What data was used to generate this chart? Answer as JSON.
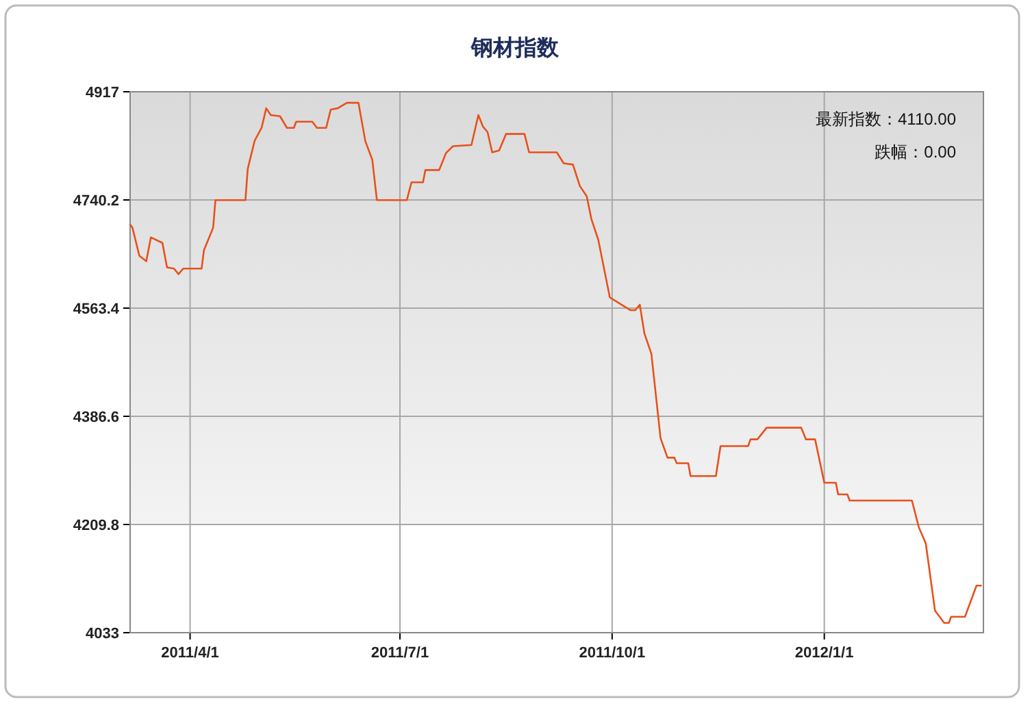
{
  "chart_data": {
    "type": "line",
    "title": "钢材指数",
    "annotations": [
      "最新指数：4110.00",
      "跌幅：0.00"
    ],
    "x": [
      "2011-03-06",
      "2011-03-07",
      "2011-03-10",
      "2011-03-13",
      "2011-03-15",
      "2011-03-20",
      "2011-03-22",
      "2011-03-25",
      "2011-03-27",
      "2011-03-29",
      "2011-04-06",
      "2011-04-07",
      "2011-04-11",
      "2011-04-12",
      "2011-04-25",
      "2011-04-26",
      "2011-04-29",
      "2011-05-02",
      "2011-05-04",
      "2011-05-06",
      "2011-05-10",
      "2011-05-13",
      "2011-05-16",
      "2011-05-17",
      "2011-05-24",
      "2011-05-26",
      "2011-05-30",
      "2011-06-01",
      "2011-06-04",
      "2011-06-08",
      "2011-06-13",
      "2011-06-16",
      "2011-06-19",
      "2011-06-21",
      "2011-07-04",
      "2011-07-06",
      "2011-07-11",
      "2011-07-12",
      "2011-07-18",
      "2011-07-21",
      "2011-07-24",
      "2011-08-01",
      "2011-08-04",
      "2011-08-06",
      "2011-08-08",
      "2011-08-10",
      "2011-08-13",
      "2011-08-16",
      "2011-08-24",
      "2011-08-26",
      "2011-09-07",
      "2011-09-10",
      "2011-09-14",
      "2011-09-17",
      "2011-09-20",
      "2011-09-22",
      "2011-09-25",
      "2011-09-30",
      "2011-10-09",
      "2011-10-11",
      "2011-10-13",
      "2011-10-15",
      "2011-10-18",
      "2011-10-22",
      "2011-10-25",
      "2011-10-28",
      "2011-10-29",
      "2011-11-03",
      "2011-11-04",
      "2011-11-15",
      "2011-11-17",
      "2011-11-29",
      "2011-11-30",
      "2011-12-03",
      "2011-12-07",
      "2011-12-22",
      "2011-12-24",
      "2011-12-28",
      "2012-01-01",
      "2012-01-06",
      "2012-01-07",
      "2012-01-11",
      "2012-01-12",
      "2012-02-08",
      "2012-02-11",
      "2012-02-14",
      "2012-02-18",
      "2012-02-22",
      "2012-02-24",
      "2012-02-25",
      "2012-03-02",
      "2012-03-07",
      "2012-03-09"
    ],
    "series": [
      {
        "color": "#e8501c",
        "values": [
          4700,
          4695,
          4649,
          4640,
          4679,
          4670,
          4630,
          4628,
          4619,
          4628,
          4628,
          4658,
          4695,
          4740,
          4740,
          4791,
          4837,
          4858,
          4890,
          4879,
          4877,
          4858,
          4858,
          4868,
          4868,
          4858,
          4858,
          4888,
          4890,
          4899,
          4899,
          4836,
          4806,
          4740,
          4740,
          4769,
          4769,
          4789,
          4789,
          4817,
          4828,
          4830,
          4879,
          4860,
          4851,
          4818,
          4821,
          4848,
          4848,
          4818,
          4818,
          4800,
          4798,
          4763,
          4746,
          4709,
          4675,
          4581,
          4560,
          4560,
          4569,
          4522,
          4489,
          4351,
          4319,
          4319,
          4310,
          4310,
          4289,
          4289,
          4338,
          4338,
          4349,
          4349,
          4368,
          4368,
          4349,
          4349,
          4278,
          4278,
          4259,
          4259,
          4249,
          4249,
          4205,
          4179,
          4069,
          4049,
          4049,
          4059,
          4059,
          4110,
          4110
        ]
      }
    ],
    "xlim": [
      "2011-03-06",
      "2012-03-10"
    ],
    "xticks": [
      {
        "value": "2011-04-01",
        "label": "2011/4/1"
      },
      {
        "value": "2011-07-01",
        "label": "2011/7/1"
      },
      {
        "value": "2011-10-01",
        "label": "2011/10/1"
      },
      {
        "value": "2012-01-01",
        "label": "2012/1/1"
      }
    ],
    "ylim": [
      4033,
      4917
    ],
    "yticks": [
      4033,
      4209.8,
      4386.6,
      4563.4,
      4740.2,
      4917
    ],
    "grid": true
  }
}
